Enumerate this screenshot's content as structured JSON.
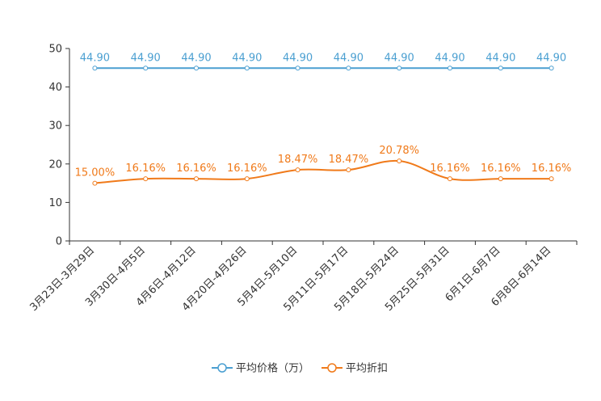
{
  "chart_data": {
    "type": "line",
    "title": "",
    "xlabel": "",
    "ylabel": "",
    "ylim": [
      0,
      50
    ],
    "yticks": [
      0,
      10,
      20,
      30,
      40,
      50
    ],
    "categories": [
      "3月23日-3月29日",
      "3月30日-4月5日",
      "4月6日-4月12日",
      "4月20日-4月26日",
      "5月4日-5月10日",
      "5月11日-5月17日",
      "5月18日-5月24日",
      "5月25日-5月31日",
      "6月1日-6月7日",
      "6月8日-6月14日"
    ],
    "series": [
      {
        "name": "平均价格（万）",
        "color": "#4a9fd1",
        "smooth": false,
        "values": [
          44.9,
          44.9,
          44.9,
          44.9,
          44.9,
          44.9,
          44.9,
          44.9,
          44.9,
          44.9
        ],
        "labels": [
          "44.90",
          "44.90",
          "44.90",
          "44.90",
          "44.90",
          "44.90",
          "44.90",
          "44.90",
          "44.90",
          "44.90"
        ]
      },
      {
        "name": "平均折扣",
        "color": "#f07a1a",
        "smooth": true,
        "values": [
          15.0,
          16.16,
          16.16,
          16.16,
          18.47,
          18.47,
          20.78,
          16.16,
          16.16,
          16.16
        ],
        "labels": [
          "15.00%",
          "16.16%",
          "16.16%",
          "16.16%",
          "18.47%",
          "18.47%",
          "20.78%",
          "16.16%",
          "16.16%",
          "16.16%"
        ]
      }
    ],
    "legend_position": "bottom-center"
  }
}
